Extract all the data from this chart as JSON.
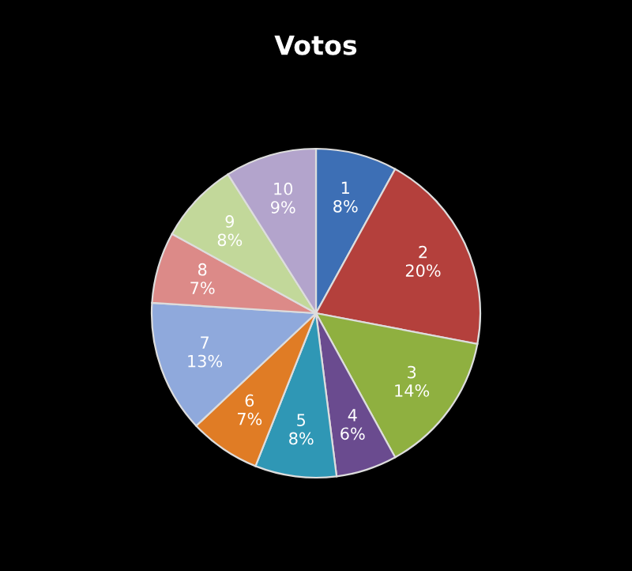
{
  "chart_data": {
    "type": "pie",
    "title": "Votos",
    "categories": [
      "1",
      "2",
      "3",
      "4",
      "5",
      "6",
      "7",
      "8",
      "9",
      "10"
    ],
    "values": [
      8,
      20,
      14,
      6,
      8,
      7,
      13,
      7,
      8,
      9
    ],
    "value_labels": [
      "8%",
      "20%",
      "14%",
      "6%",
      "8%",
      "7%",
      "13%",
      "7%",
      "8%",
      "9%"
    ],
    "colors": [
      "#3d6fb5",
      "#b4403c",
      "#8fb040",
      "#6a4b8f",
      "#2f97b5",
      "#e07c25",
      "#8fa9dc",
      "#dc8a88",
      "#c2d89a",
      "#b3a4cc"
    ]
  }
}
